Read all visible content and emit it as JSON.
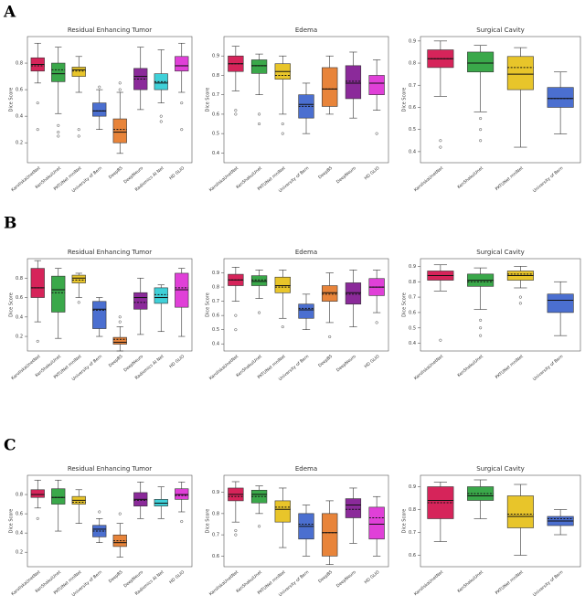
{
  "panel_labels": [
    "A",
    "B",
    "C"
  ],
  "chart_data": [
    {
      "type": "box",
      "title": "Residual Enhancing Tumor",
      "ylabel": "Dice Score",
      "ylim": [
        0.05,
        1.0
      ],
      "yticks": [
        0.2,
        0.4,
        0.6,
        0.8
      ],
      "categories": [
        "KaroliskaUnetNet",
        "KenShakuiUnet",
        "PKTUNet mniNet",
        "University of Bern",
        "DeepBS",
        "DeepNeuro",
        "Radiomics AI Net",
        "HD GLIO"
      ],
      "colors": [
        "#d6245a",
        "#3aa84a",
        "#e8c52a",
        "#4b6fd0",
        "#e8843a",
        "#8b2a9a",
        "#3fd0d8",
        "#e040d8"
      ],
      "boxes": [
        {
          "whislo": 0.65,
          "q1": 0.74,
          "med": 0.79,
          "q3": 0.84,
          "whishi": 0.95,
          "mean": 0.78,
          "fliers": [
            0.5,
            0.3
          ]
        },
        {
          "whislo": 0.42,
          "q1": 0.66,
          "med": 0.72,
          "q3": 0.8,
          "whishi": 0.92,
          "mean": 0.75,
          "fliers": [
            0.33,
            0.28,
            0.25
          ]
        },
        {
          "whislo": 0.58,
          "q1": 0.7,
          "med": 0.75,
          "q3": 0.77,
          "whishi": 0.85,
          "mean": 0.74,
          "fliers": [
            0.3,
            0.25
          ]
        },
        {
          "whislo": 0.3,
          "q1": 0.4,
          "med": 0.44,
          "q3": 0.5,
          "whishi": 0.6,
          "mean": 0.44,
          "fliers": [
            0.62
          ]
        },
        {
          "whislo": 0.12,
          "q1": 0.2,
          "med": 0.28,
          "q3": 0.38,
          "whishi": 0.58,
          "mean": 0.3,
          "fliers": [
            0.6,
            0.65
          ]
        },
        {
          "whislo": 0.45,
          "q1": 0.6,
          "med": 0.7,
          "q3": 0.76,
          "whishi": 0.92,
          "mean": 0.68,
          "fliers": []
        },
        {
          "whislo": 0.5,
          "q1": 0.6,
          "med": 0.65,
          "q3": 0.72,
          "whishi": 0.9,
          "mean": 0.66,
          "fliers": [
            0.4,
            0.36
          ]
        },
        {
          "whislo": 0.58,
          "q1": 0.74,
          "med": 0.78,
          "q3": 0.85,
          "whishi": 0.95,
          "mean": 0.78,
          "fliers": [
            0.5,
            0.3
          ]
        }
      ]
    },
    {
      "type": "box",
      "title": "Edema",
      "ylabel": "Dice Score",
      "ylim": [
        0.35,
        1.0
      ],
      "yticks": [
        0.4,
        0.5,
        0.6,
        0.7,
        0.8,
        0.9
      ],
      "categories": [
        "KaroliskaUnetNet",
        "KenShakuiUnet",
        "PKTUNet mniNet",
        "University of Bern",
        "DeepBS",
        "DeepNeuro",
        "HD GLIO"
      ],
      "colors": [
        "#d6245a",
        "#3aa84a",
        "#e8c52a",
        "#4b6fd0",
        "#e8843a",
        "#8b2a9a",
        "#e040d8"
      ],
      "boxes": [
        {
          "whislo": 0.72,
          "q1": 0.82,
          "med": 0.86,
          "q3": 0.9,
          "whishi": 0.95,
          "mean": 0.86,
          "fliers": [
            0.62,
            0.6
          ]
        },
        {
          "whislo": 0.7,
          "q1": 0.81,
          "med": 0.85,
          "q3": 0.88,
          "whishi": 0.91,
          "mean": 0.85,
          "fliers": [
            0.6,
            0.55
          ]
        },
        {
          "whislo": 0.6,
          "q1": 0.78,
          "med": 0.82,
          "q3": 0.86,
          "whishi": 0.9,
          "mean": 0.8,
          "fliers": [
            0.55,
            0.5
          ]
        },
        {
          "whislo": 0.5,
          "q1": 0.58,
          "med": 0.65,
          "q3": 0.7,
          "whishi": 0.76,
          "mean": 0.64,
          "fliers": []
        },
        {
          "whislo": 0.6,
          "q1": 0.64,
          "med": 0.73,
          "q3": 0.84,
          "whishi": 0.9,
          "mean": 0.73,
          "fliers": []
        },
        {
          "whislo": 0.58,
          "q1": 0.68,
          "med": 0.76,
          "q3": 0.85,
          "whishi": 0.92,
          "mean": 0.77,
          "fliers": []
        },
        {
          "whislo": 0.62,
          "q1": 0.7,
          "med": 0.76,
          "q3": 0.8,
          "whishi": 0.88,
          "mean": 0.76,
          "fliers": [
            0.5
          ]
        }
      ]
    },
    {
      "type": "box",
      "title": "Surgical Cavity",
      "ylabel": "Dice Score",
      "ylim": [
        0.35,
        0.92
      ],
      "yticks": [
        0.4,
        0.5,
        0.6,
        0.7,
        0.8,
        0.9
      ],
      "categories": [
        "KaroliskaUnetNet",
        "KenShakuiUnet",
        "PKTUNet mniNet",
        "University of Bern"
      ],
      "colors": [
        "#d6245a",
        "#3aa84a",
        "#e8c52a",
        "#4b6fd0"
      ],
      "boxes": [
        {
          "whislo": 0.65,
          "q1": 0.78,
          "med": 0.82,
          "q3": 0.86,
          "whishi": 0.9,
          "mean": 0.82,
          "fliers": [
            0.45,
            0.42
          ]
        },
        {
          "whislo": 0.58,
          "q1": 0.76,
          "med": 0.8,
          "q3": 0.85,
          "whishi": 0.88,
          "mean": 0.8,
          "fliers": [
            0.55,
            0.5,
            0.45
          ]
        },
        {
          "whislo": 0.42,
          "q1": 0.68,
          "med": 0.75,
          "q3": 0.83,
          "whishi": 0.87,
          "mean": 0.78,
          "fliers": []
        },
        {
          "whislo": 0.48,
          "q1": 0.6,
          "med": 0.64,
          "q3": 0.69,
          "whishi": 0.76,
          "mean": 0.64,
          "fliers": []
        }
      ]
    },
    {
      "type": "box",
      "title": "Residual Enhancing Tumor",
      "ylabel": "Dice Score",
      "ylim": [
        0.05,
        1.0
      ],
      "yticks": [
        0.2,
        0.4,
        0.6,
        0.8
      ],
      "categories": [
        "KaroliskaUnetNet",
        "KenShakuiUnet",
        "PKTUNet mniNet",
        "University of Bern",
        "DeepBS",
        "DeepNeuro",
        "Radiomics AI Net",
        "HD GLIO"
      ],
      "colors": [
        "#d6245a",
        "#3aa84a",
        "#e8c52a",
        "#4b6fd0",
        "#e8843a",
        "#8b2a9a",
        "#3fd0d8",
        "#e040d8"
      ],
      "boxes": [
        {
          "whislo": 0.35,
          "q1": 0.6,
          "med": 0.7,
          "q3": 0.9,
          "whishi": 0.98,
          "mean": 0.7,
          "fliers": [
            0.15
          ]
        },
        {
          "whislo": 0.18,
          "q1": 0.45,
          "med": 0.68,
          "q3": 0.82,
          "whishi": 0.9,
          "mean": 0.65,
          "fliers": []
        },
        {
          "whislo": 0.6,
          "q1": 0.75,
          "med": 0.8,
          "q3": 0.83,
          "whishi": 0.85,
          "mean": 0.78,
          "fliers": [
            0.55
          ]
        },
        {
          "whislo": 0.2,
          "q1": 0.28,
          "med": 0.48,
          "q3": 0.56,
          "whishi": 0.6,
          "mean": 0.47,
          "fliers": []
        },
        {
          "whislo": 0.05,
          "q1": 0.12,
          "med": 0.14,
          "q3": 0.19,
          "whishi": 0.3,
          "mean": 0.17,
          "fliers": [
            0.35,
            0.4
          ]
        },
        {
          "whislo": 0.22,
          "q1": 0.48,
          "med": 0.6,
          "q3": 0.65,
          "whishi": 0.8,
          "mean": 0.55,
          "fliers": []
        },
        {
          "whislo": 0.25,
          "q1": 0.54,
          "med": 0.6,
          "q3": 0.7,
          "whishi": 0.73,
          "mean": 0.63,
          "fliers": []
        },
        {
          "whislo": 0.2,
          "q1": 0.5,
          "med": 0.68,
          "q3": 0.85,
          "whishi": 0.9,
          "mean": 0.7,
          "fliers": []
        }
      ]
    },
    {
      "type": "box",
      "title": "Edema",
      "ylabel": "Dice Score",
      "ylim": [
        0.35,
        1.0
      ],
      "yticks": [
        0.4,
        0.5,
        0.6,
        0.7,
        0.8,
        0.9
      ],
      "categories": [
        "KaroliskaUnetNet",
        "KenShakuiUnet",
        "PKTUNet mniNet",
        "University of Bern",
        "DeepBS",
        "DeepNeuro",
        "HD GLIO"
      ],
      "colors": [
        "#d6245a",
        "#3aa84a",
        "#e8c52a",
        "#4b6fd0",
        "#e8843a",
        "#8b2a9a",
        "#e040d8"
      ],
      "boxes": [
        {
          "whislo": 0.7,
          "q1": 0.81,
          "med": 0.85,
          "q3": 0.89,
          "whishi": 0.94,
          "mean": 0.85,
          "fliers": [
            0.6,
            0.5
          ]
        },
        {
          "whislo": 0.72,
          "q1": 0.81,
          "med": 0.84,
          "q3": 0.88,
          "whishi": 0.92,
          "mean": 0.85,
          "fliers": [
            0.62
          ]
        },
        {
          "whislo": 0.58,
          "q1": 0.76,
          "med": 0.81,
          "q3": 0.87,
          "whishi": 0.92,
          "mean": 0.8,
          "fliers": [
            0.52
          ]
        },
        {
          "whislo": 0.5,
          "q1": 0.58,
          "med": 0.64,
          "q3": 0.68,
          "whishi": 0.75,
          "mean": 0.65,
          "fliers": []
        },
        {
          "whislo": 0.55,
          "q1": 0.7,
          "med": 0.76,
          "q3": 0.81,
          "whishi": 0.9,
          "mean": 0.75,
          "fliers": [
            0.45
          ]
        },
        {
          "whislo": 0.52,
          "q1": 0.68,
          "med": 0.76,
          "q3": 0.83,
          "whishi": 0.92,
          "mean": 0.75,
          "fliers": []
        },
        {
          "whislo": 0.62,
          "q1": 0.74,
          "med": 0.8,
          "q3": 0.86,
          "whishi": 0.92,
          "mean": 0.8,
          "fliers": [
            0.55
          ]
        }
      ]
    },
    {
      "type": "box",
      "title": "Surgical Cavity",
      "ylabel": "Dice Score",
      "ylim": [
        0.35,
        0.95
      ],
      "yticks": [
        0.4,
        0.5,
        0.6,
        0.7,
        0.8,
        0.9
      ],
      "categories": [
        "KaroliskaUnetNet",
        "KenShakuiUnet",
        "PKTUNet mniNet",
        "University of Bern"
      ],
      "colors": [
        "#d6245a",
        "#3aa84a",
        "#e8c52a",
        "#4b6fd0"
      ],
      "boxes": [
        {
          "whislo": 0.74,
          "q1": 0.81,
          "med": 0.84,
          "q3": 0.87,
          "whishi": 0.91,
          "mean": 0.84,
          "fliers": [
            0.42
          ]
        },
        {
          "whislo": 0.62,
          "q1": 0.77,
          "med": 0.81,
          "q3": 0.85,
          "whishi": 0.89,
          "mean": 0.8,
          "fliers": [
            0.55,
            0.5,
            0.45
          ]
        },
        {
          "whislo": 0.76,
          "q1": 0.81,
          "med": 0.84,
          "q3": 0.87,
          "whishi": 0.9,
          "mean": 0.85,
          "fliers": [
            0.7,
            0.66
          ]
        },
        {
          "whislo": 0.45,
          "q1": 0.6,
          "med": 0.68,
          "q3": 0.72,
          "whishi": 0.8,
          "mean": 0.68,
          "fliers": []
        }
      ]
    },
    {
      "type": "box",
      "title": "Residual Enhancing Tumor",
      "ylabel": "Dice Score",
      "ylim": [
        0.05,
        1.0
      ],
      "yticks": [
        0.2,
        0.4,
        0.6,
        0.8
      ],
      "categories": [
        "KaroliskaUnetNet",
        "KenShakuiUnet",
        "PKTUNet mniNet",
        "University of Bern",
        "DeepBS",
        "DeepNeuro",
        "Radiomics AI Net",
        "HD GLIO"
      ],
      "colors": [
        "#d6245a",
        "#3aa84a",
        "#e8c52a",
        "#4b6fd0",
        "#e8843a",
        "#8b2a9a",
        "#3fd0d8",
        "#e040d8"
      ],
      "boxes": [
        {
          "whislo": 0.66,
          "q1": 0.77,
          "med": 0.8,
          "q3": 0.85,
          "whishi": 0.95,
          "mean": 0.8,
          "fliers": [
            0.55
          ]
        },
        {
          "whislo": 0.42,
          "q1": 0.7,
          "med": 0.77,
          "q3": 0.86,
          "whishi": 0.95,
          "mean": 0.77,
          "fliers": []
        },
        {
          "whislo": 0.5,
          "q1": 0.7,
          "med": 0.74,
          "q3": 0.78,
          "whishi": 0.85,
          "mean": 0.72,
          "fliers": []
        },
        {
          "whislo": 0.3,
          "q1": 0.36,
          "med": 0.44,
          "q3": 0.48,
          "whishi": 0.55,
          "mean": 0.42,
          "fliers": [
            0.62
          ]
        },
        {
          "whislo": 0.15,
          "q1": 0.26,
          "med": 0.3,
          "q3": 0.38,
          "whishi": 0.5,
          "mean": 0.32,
          "fliers": [
            0.6
          ]
        },
        {
          "whislo": 0.55,
          "q1": 0.68,
          "med": 0.75,
          "q3": 0.82,
          "whishi": 0.93,
          "mean": 0.74,
          "fliers": []
        },
        {
          "whislo": 0.55,
          "q1": 0.68,
          "med": 0.71,
          "q3": 0.75,
          "whishi": 0.88,
          "mean": 0.71,
          "fliers": []
        },
        {
          "whislo": 0.62,
          "q1": 0.75,
          "med": 0.8,
          "q3": 0.86,
          "whishi": 0.93,
          "mean": 0.79,
          "fliers": [
            0.52
          ]
        }
      ]
    },
    {
      "type": "box",
      "title": "Edema",
      "ylabel": "Dice Score",
      "ylim": [
        0.55,
        0.98
      ],
      "yticks": [
        0.6,
        0.7,
        0.8,
        0.9
      ],
      "categories": [
        "KaroliskaUnetNet",
        "KenShakuiUnet",
        "PKTUNet mniNet",
        "University of Bern",
        "DeepBS",
        "DeepNeuro",
        "HD GLIO"
      ],
      "colors": [
        "#d6245a",
        "#3aa84a",
        "#e8c52a",
        "#4b6fd0",
        "#e8843a",
        "#8b2a9a",
        "#e040d8"
      ],
      "boxes": [
        {
          "whislo": 0.76,
          "q1": 0.86,
          "med": 0.89,
          "q3": 0.92,
          "whishi": 0.95,
          "mean": 0.88,
          "fliers": [
            0.72,
            0.7
          ]
        },
        {
          "whislo": 0.8,
          "q1": 0.85,
          "med": 0.89,
          "q3": 0.91,
          "whishi": 0.93,
          "mean": 0.88,
          "fliers": [
            0.74
          ]
        },
        {
          "whislo": 0.64,
          "q1": 0.76,
          "med": 0.82,
          "q3": 0.86,
          "whishi": 0.92,
          "mean": 0.83,
          "fliers": []
        },
        {
          "whislo": 0.6,
          "q1": 0.68,
          "med": 0.74,
          "q3": 0.8,
          "whishi": 0.84,
          "mean": 0.75,
          "fliers": []
        },
        {
          "whislo": 0.56,
          "q1": 0.6,
          "med": 0.71,
          "q3": 0.8,
          "whishi": 0.86,
          "mean": 0.71,
          "fliers": []
        },
        {
          "whislo": 0.66,
          "q1": 0.78,
          "med": 0.84,
          "q3": 0.87,
          "whishi": 0.92,
          "mean": 0.82,
          "fliers": []
        },
        {
          "whislo": 0.6,
          "q1": 0.68,
          "med": 0.75,
          "q3": 0.83,
          "whishi": 0.88,
          "mean": 0.78,
          "fliers": []
        }
      ]
    },
    {
      "type": "box",
      "title": "Surgical Cavity",
      "ylabel": "Dice Score",
      "ylim": [
        0.55,
        0.95
      ],
      "yticks": [
        0.6,
        0.7,
        0.8,
        0.9
      ],
      "categories": [
        "KaroliskaUnetNet",
        "KenShakuiUnet",
        "PKTUNet mniNet",
        "University of Bern"
      ],
      "colors": [
        "#d6245a",
        "#3aa84a",
        "#e8c52a",
        "#4b6fd0"
      ],
      "boxes": [
        {
          "whislo": 0.66,
          "q1": 0.76,
          "med": 0.84,
          "q3": 0.9,
          "whishi": 0.92,
          "mean": 0.83,
          "fliers": []
        },
        {
          "whislo": 0.76,
          "q1": 0.84,
          "med": 0.86,
          "q3": 0.9,
          "whishi": 0.93,
          "mean": 0.87,
          "fliers": []
        },
        {
          "whislo": 0.6,
          "q1": 0.72,
          "med": 0.77,
          "q3": 0.86,
          "whishi": 0.91,
          "mean": 0.78,
          "fliers": []
        },
        {
          "whislo": 0.69,
          "q1": 0.73,
          "med": 0.75,
          "q3": 0.77,
          "whishi": 0.8,
          "mean": 0.76,
          "fliers": []
        }
      ]
    }
  ]
}
